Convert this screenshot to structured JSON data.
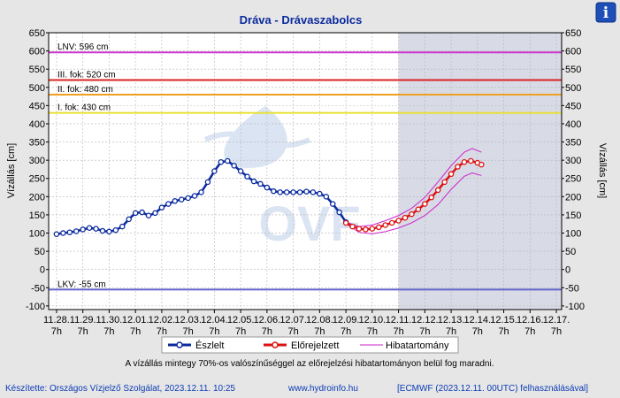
{
  "chart_data": {
    "type": "line",
    "title": "Dráva - Drávaszabolcs",
    "ylabel": "Vízállás [cm]",
    "ylim": [
      -110,
      650
    ],
    "yticks": [
      -100,
      -50,
      0,
      50,
      100,
      150,
      200,
      250,
      300,
      350,
      400,
      450,
      500,
      550,
      600,
      650
    ],
    "grid": true,
    "x_tick_dates": [
      "11.28.",
      "11.29.",
      "11.30.",
      "12.01.",
      "12.02.",
      "12.03.",
      "12.04.",
      "12.05.",
      "12.06.",
      "12.07.",
      "12.08.",
      "12.09.",
      "12.10.",
      "12.11.",
      "12.12.",
      "12.13.",
      "12.14.",
      "12.15.",
      "12.16.",
      "12.17."
    ],
    "x_tick_time": "7h",
    "thresholds": [
      {
        "label": "LNV: 596 cm",
        "value": 596,
        "color": "#cc33cc"
      },
      {
        "label": "III. fok: 520 cm",
        "value": 520,
        "color": "#dd2222"
      },
      {
        "label": "II. fok: 480 cm",
        "value": 480,
        "color": "#f0a020"
      },
      {
        "label": "I. fok: 430 cm",
        "value": 430,
        "color": "#e8e030"
      },
      {
        "label": "LKV: -55 cm",
        "value": -55,
        "color": "#6666cc"
      }
    ],
    "forecast_start": "12.11. 7h",
    "series": [
      {
        "name": "Észlelt",
        "color": "#0a2a9e",
        "points": [
          [
            0,
            97
          ],
          [
            0.5,
            100
          ],
          [
            1,
            102
          ],
          [
            1.5,
            105
          ],
          [
            2,
            110
          ],
          [
            2.5,
            114
          ],
          [
            3,
            112
          ],
          [
            3.5,
            106
          ],
          [
            4,
            104
          ],
          [
            4.5,
            108
          ],
          [
            5,
            118
          ],
          [
            5.5,
            138
          ],
          [
            6,
            155
          ],
          [
            6.5,
            157
          ],
          [
            7,
            148
          ],
          [
            7.5,
            155
          ],
          [
            8,
            170
          ],
          [
            8.5,
            180
          ],
          [
            9,
            188
          ],
          [
            9.5,
            192
          ],
          [
            10,
            196
          ],
          [
            10.5,
            202
          ],
          [
            11,
            212
          ],
          [
            11.5,
            240
          ],
          [
            12,
            270
          ],
          [
            12.5,
            295
          ],
          [
            13,
            298
          ],
          [
            13.5,
            285
          ],
          [
            14,
            270
          ],
          [
            14.5,
            255
          ],
          [
            15,
            242
          ],
          [
            15.5,
            235
          ],
          [
            16,
            225
          ],
          [
            16.5,
            215
          ],
          [
            17,
            212
          ],
          [
            17.5,
            212
          ],
          [
            18,
            212
          ],
          [
            18.5,
            212
          ],
          [
            19,
            214
          ],
          [
            19.5,
            212
          ],
          [
            20,
            208
          ],
          [
            20.5,
            200
          ],
          [
            21,
            180
          ],
          [
            21.5,
            157
          ],
          [
            22,
            130
          ]
        ]
      },
      {
        "name": "Előrejelzett",
        "color": "#dd1111",
        "points": [
          [
            22,
            128
          ],
          [
            22.5,
            118
          ],
          [
            23,
            112
          ],
          [
            23.5,
            110
          ],
          [
            24,
            112
          ],
          [
            24.5,
            116
          ],
          [
            25,
            122
          ],
          [
            25.5,
            128
          ],
          [
            26,
            134
          ],
          [
            26.5,
            142
          ],
          [
            27,
            152
          ],
          [
            27.5,
            165
          ],
          [
            28,
            180
          ],
          [
            28.5,
            198
          ],
          [
            29,
            218
          ],
          [
            29.5,
            240
          ],
          [
            30,
            262
          ],
          [
            30.5,
            282
          ],
          [
            31,
            295
          ],
          [
            31.5,
            298
          ],
          [
            32,
            293
          ],
          [
            32.3,
            288
          ]
        ]
      },
      {
        "name": "Hibatartomány",
        "color": "#cc22cc",
        "upper": [
          [
            22,
            130
          ],
          [
            23,
            118
          ],
          [
            24,
            122
          ],
          [
            25,
            134
          ],
          [
            26,
            148
          ],
          [
            27,
            168
          ],
          [
            28,
            198
          ],
          [
            29,
            240
          ],
          [
            30,
            285
          ],
          [
            31,
            322
          ],
          [
            31.6,
            332
          ],
          [
            32.3,
            322
          ]
        ],
        "lower": [
          [
            22,
            126
          ],
          [
            23,
            102
          ],
          [
            24,
            98
          ],
          [
            25,
            104
          ],
          [
            26,
            114
          ],
          [
            27,
            128
          ],
          [
            28,
            148
          ],
          [
            29,
            178
          ],
          [
            30,
            220
          ],
          [
            31,
            256
          ],
          [
            31.6,
            265
          ],
          [
            32.3,
            258
          ]
        ]
      }
    ],
    "legend_position": "bottom",
    "note": "A vízállás mintegy 70%-os valószínűséggel az előrejelzési hibatartományon belül fog maradni."
  },
  "watermark": "OVF",
  "footer": {
    "left": "Készítette: Országos Vízjelző Szolgálat, 2023.12.11. 10:25",
    "center": "www.hydroinfo.hu",
    "right": "[ECMWF (2023.12.11. 00UTC) felhasználásával]"
  },
  "info_icon": "info-icon",
  "info_label": "i"
}
